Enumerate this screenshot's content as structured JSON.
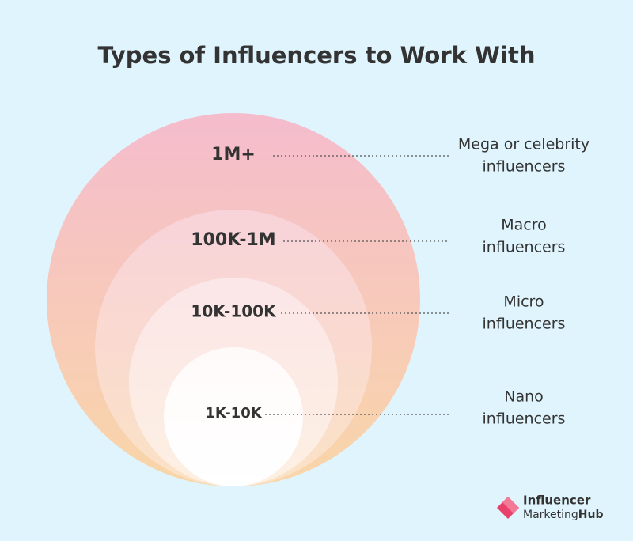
{
  "header": {
    "title": "Types of Influencers to Work With"
  },
  "tiers": [
    {
      "range": "1M+",
      "name_lines": [
        "Mega or celebrity",
        "influencers"
      ]
    },
    {
      "range": "100K-1M",
      "name_lines": [
        "Macro",
        "influencers"
      ]
    },
    {
      "range": "10K-100K",
      "name_lines": [
        "Micro",
        "influencers"
      ]
    },
    {
      "range": "1K-10K",
      "name_lines": [
        "Nano",
        "influencers"
      ]
    }
  ],
  "logo": {
    "line1": "Influencer",
    "line2a": "Marketing",
    "line2b": "Hub"
  }
}
